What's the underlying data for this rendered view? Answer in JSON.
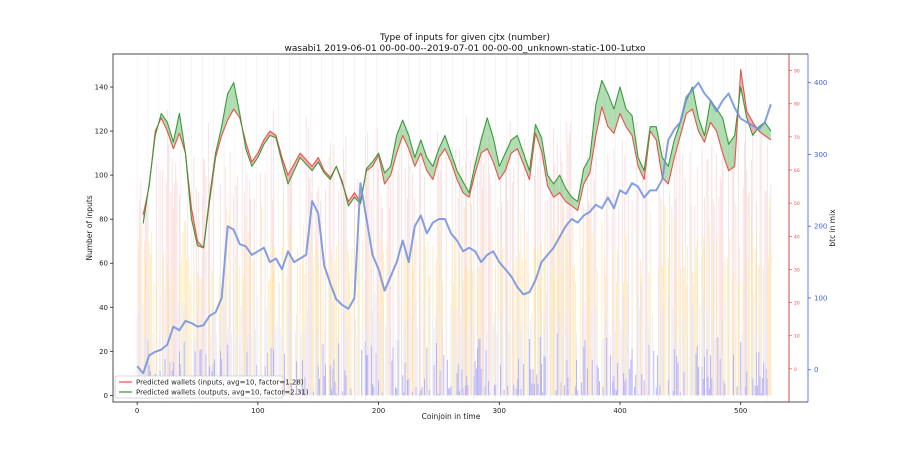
{
  "chart_data": {
    "type": "line",
    "title": "Type of inputs for given cjtx (number)",
    "subtitle": "wasabi1 2019-06-01 00-00-00--2019-07-01 00-00-00_unknown-static-100-1utxo",
    "xlabel": "Coinjoin in time",
    "ylabel": "Number of inputs",
    "ylabel_right2": "btc in mix",
    "xlim": [
      -20,
      540
    ],
    "ylim": [
      -3,
      155
    ],
    "ylim_right1": [
      -10,
      95
    ],
    "ylim_right2": [
      -45,
      440
    ],
    "x_ticks": [
      0,
      100,
      200,
      300,
      400,
      500
    ],
    "y_ticks": [
      0,
      20,
      40,
      60,
      80,
      100,
      120,
      140
    ],
    "right1_ticks": [
      0,
      10,
      20,
      30,
      40,
      50,
      60,
      70,
      80,
      90
    ],
    "right2_ticks": [
      0,
      100,
      200,
      300,
      400
    ],
    "colors": {
      "inputs": "#e8524a",
      "outputs": "#3a9a3a",
      "btc": "#6f8fe0",
      "fill_green": "#7fc67f",
      "fill_red": "#f08080",
      "bars_yellow": "#ffe08a",
      "bars_pink": "#f8c8c8",
      "bars_lavender": "#e0e0f8",
      "bars_blue": "#9999ff",
      "right1_axis": "#e8524a",
      "right2_axis": "#4060e0"
    },
    "legend_position": "lower-left",
    "series": [
      {
        "name": "Predicted wallets (inputs, avg=10, factor=1.28)",
        "color": "#e8524a",
        "x": [
          5,
          10,
          15,
          20,
          25,
          30,
          35,
          40,
          45,
          50,
          55,
          60,
          65,
          70,
          75,
          80,
          85,
          90,
          95,
          100,
          105,
          110,
          115,
          120,
          125,
          130,
          135,
          140,
          145,
          150,
          155,
          160,
          165,
          170,
          175,
          180,
          185,
          190,
          195,
          200,
          205,
          210,
          215,
          220,
          225,
          230,
          235,
          240,
          245,
          250,
          255,
          260,
          265,
          270,
          275,
          280,
          285,
          290,
          295,
          300,
          305,
          310,
          315,
          320,
          325,
          330,
          335,
          340,
          345,
          350,
          355,
          360,
          365,
          370,
          375,
          380,
          385,
          390,
          395,
          400,
          405,
          410,
          415,
          420,
          425,
          430,
          435,
          440,
          445,
          450,
          455,
          460,
          465,
          470,
          475,
          480,
          485,
          490,
          495,
          500,
          505,
          510,
          515,
          520,
          525
        ],
        "values": [
          82,
          95,
          120,
          126,
          120,
          112,
          119,
          110,
          85,
          70,
          67,
          88,
          108,
          118,
          125,
          130,
          126,
          115,
          106,
          110,
          116,
          120,
          118,
          108,
          100,
          105,
          110,
          107,
          104,
          108,
          102,
          99,
          104,
          96,
          88,
          92,
          88,
          102,
          104,
          109,
          96,
          100,
          110,
          118,
          112,
          104,
          110,
          102,
          98,
          108,
          112,
          106,
          98,
          92,
          90,
          101,
          110,
          112,
          106,
          98,
          102,
          110,
          112,
          105,
          98,
          119,
          111,
          95,
          90,
          92,
          88,
          86,
          84,
          96,
          101,
          118,
          131,
          122,
          119,
          128,
          122,
          118,
          104,
          98,
          120,
          116,
          99,
          96,
          108,
          118,
          128,
          130,
          120,
          115,
          124,
          120,
          110,
          102,
          104,
          148,
          129,
          124,
          120,
          118,
          116
        ]
      },
      {
        "name": "Predicted wallets (outputs, avg=10, factor=2.31)",
        "color": "#3a9a3a",
        "x": [
          5,
          10,
          15,
          20,
          25,
          30,
          35,
          40,
          45,
          50,
          55,
          60,
          65,
          70,
          75,
          80,
          85,
          90,
          95,
          100,
          105,
          110,
          115,
          120,
          125,
          130,
          135,
          140,
          145,
          150,
          155,
          160,
          165,
          170,
          175,
          180,
          185,
          190,
          195,
          200,
          205,
          210,
          215,
          220,
          225,
          230,
          235,
          240,
          245,
          250,
          255,
          260,
          265,
          270,
          275,
          280,
          285,
          290,
          295,
          300,
          305,
          310,
          315,
          320,
          325,
          330,
          335,
          340,
          345,
          350,
          355,
          360,
          365,
          370,
          375,
          380,
          385,
          390,
          395,
          400,
          405,
          410,
          415,
          420,
          425,
          430,
          435,
          440,
          445,
          450,
          455,
          460,
          465,
          470,
          475,
          480,
          485,
          490,
          495,
          500,
          505,
          510,
          515,
          520,
          525
        ],
        "values": [
          78,
          96,
          118,
          128,
          124,
          115,
          128,
          110,
          80,
          68,
          67,
          90,
          110,
          122,
          137,
          142,
          128,
          112,
          104,
          108,
          114,
          118,
          117,
          106,
          96,
          102,
          108,
          105,
          102,
          106,
          101,
          98,
          104,
          97,
          86,
          90,
          87,
          103,
          106,
          110,
          101,
          104,
          118,
          125,
          118,
          108,
          116,
          108,
          104,
          112,
          118,
          110,
          102,
          97,
          92,
          105,
          116,
          126,
          117,
          104,
          110,
          116,
          118,
          110,
          102,
          123,
          117,
          100,
          96,
          100,
          94,
          90,
          88,
          103,
          108,
          132,
          143,
          137,
          130,
          140,
          130,
          127,
          108,
          102,
          122,
          122,
          108,
          104,
          116,
          124,
          134,
          140,
          126,
          118,
          134,
          130,
          126,
          114,
          118,
          140,
          126,
          118,
          122,
          124,
          120
        ]
      },
      {
        "name": "btc in mix",
        "color": "#6f8fe0",
        "axis": "right2",
        "x": [
          0,
          5,
          10,
          15,
          20,
          25,
          30,
          35,
          40,
          45,
          50,
          55,
          60,
          65,
          70,
          75,
          80,
          85,
          90,
          95,
          100,
          105,
          110,
          115,
          120,
          125,
          130,
          135,
          140,
          145,
          150,
          155,
          160,
          165,
          170,
          175,
          180,
          185,
          190,
          195,
          200,
          205,
          210,
          215,
          220,
          225,
          230,
          235,
          240,
          245,
          250,
          255,
          260,
          265,
          270,
          275,
          280,
          285,
          290,
          295,
          300,
          305,
          310,
          315,
          320,
          325,
          330,
          335,
          340,
          345,
          350,
          355,
          360,
          365,
          370,
          375,
          380,
          385,
          390,
          395,
          400,
          405,
          410,
          415,
          420,
          425,
          430,
          435,
          440,
          445,
          450,
          455,
          460,
          465,
          470,
          475,
          480,
          485,
          490,
          495,
          500,
          505,
          510,
          515,
          520,
          525
        ],
        "values": [
          5,
          -5,
          20,
          25,
          28,
          35,
          60,
          55,
          68,
          65,
          60,
          62,
          75,
          80,
          100,
          200,
          195,
          175,
          172,
          160,
          165,
          170,
          150,
          155,
          140,
          165,
          150,
          155,
          160,
          235,
          218,
          145,
          120,
          98,
          90,
          85,
          100,
          260,
          210,
          160,
          140,
          110,
          130,
          150,
          180,
          150,
          200,
          215,
          190,
          205,
          210,
          210,
          190,
          180,
          165,
          170,
          165,
          150,
          160,
          165,
          150,
          140,
          130,
          115,
          105,
          108,
          125,
          150,
          160,
          170,
          185,
          200,
          210,
          205,
          215,
          220,
          230,
          225,
          240,
          225,
          250,
          245,
          260,
          255,
          240,
          250,
          250,
          265,
          320,
          335,
          345,
          380,
          390,
          400,
          385,
          375,
          360,
          375,
          385,
          365,
          350,
          345,
          340,
          335,
          345,
          370
        ]
      }
    ],
    "bar_series": [
      {
        "name": "",
        "color": "#9999ff",
        "typical_range": [
          0,
          25
        ]
      },
      {
        "name": "",
        "color": "#e0e0f8",
        "typical_range": [
          25,
          50
        ]
      },
      {
        "name": "",
        "color": "#ffe08a",
        "typical_range": [
          50,
          85
        ]
      },
      {
        "name": "",
        "color": "#f8c8c8",
        "typical_range": [
          85,
          125
        ]
      }
    ]
  }
}
